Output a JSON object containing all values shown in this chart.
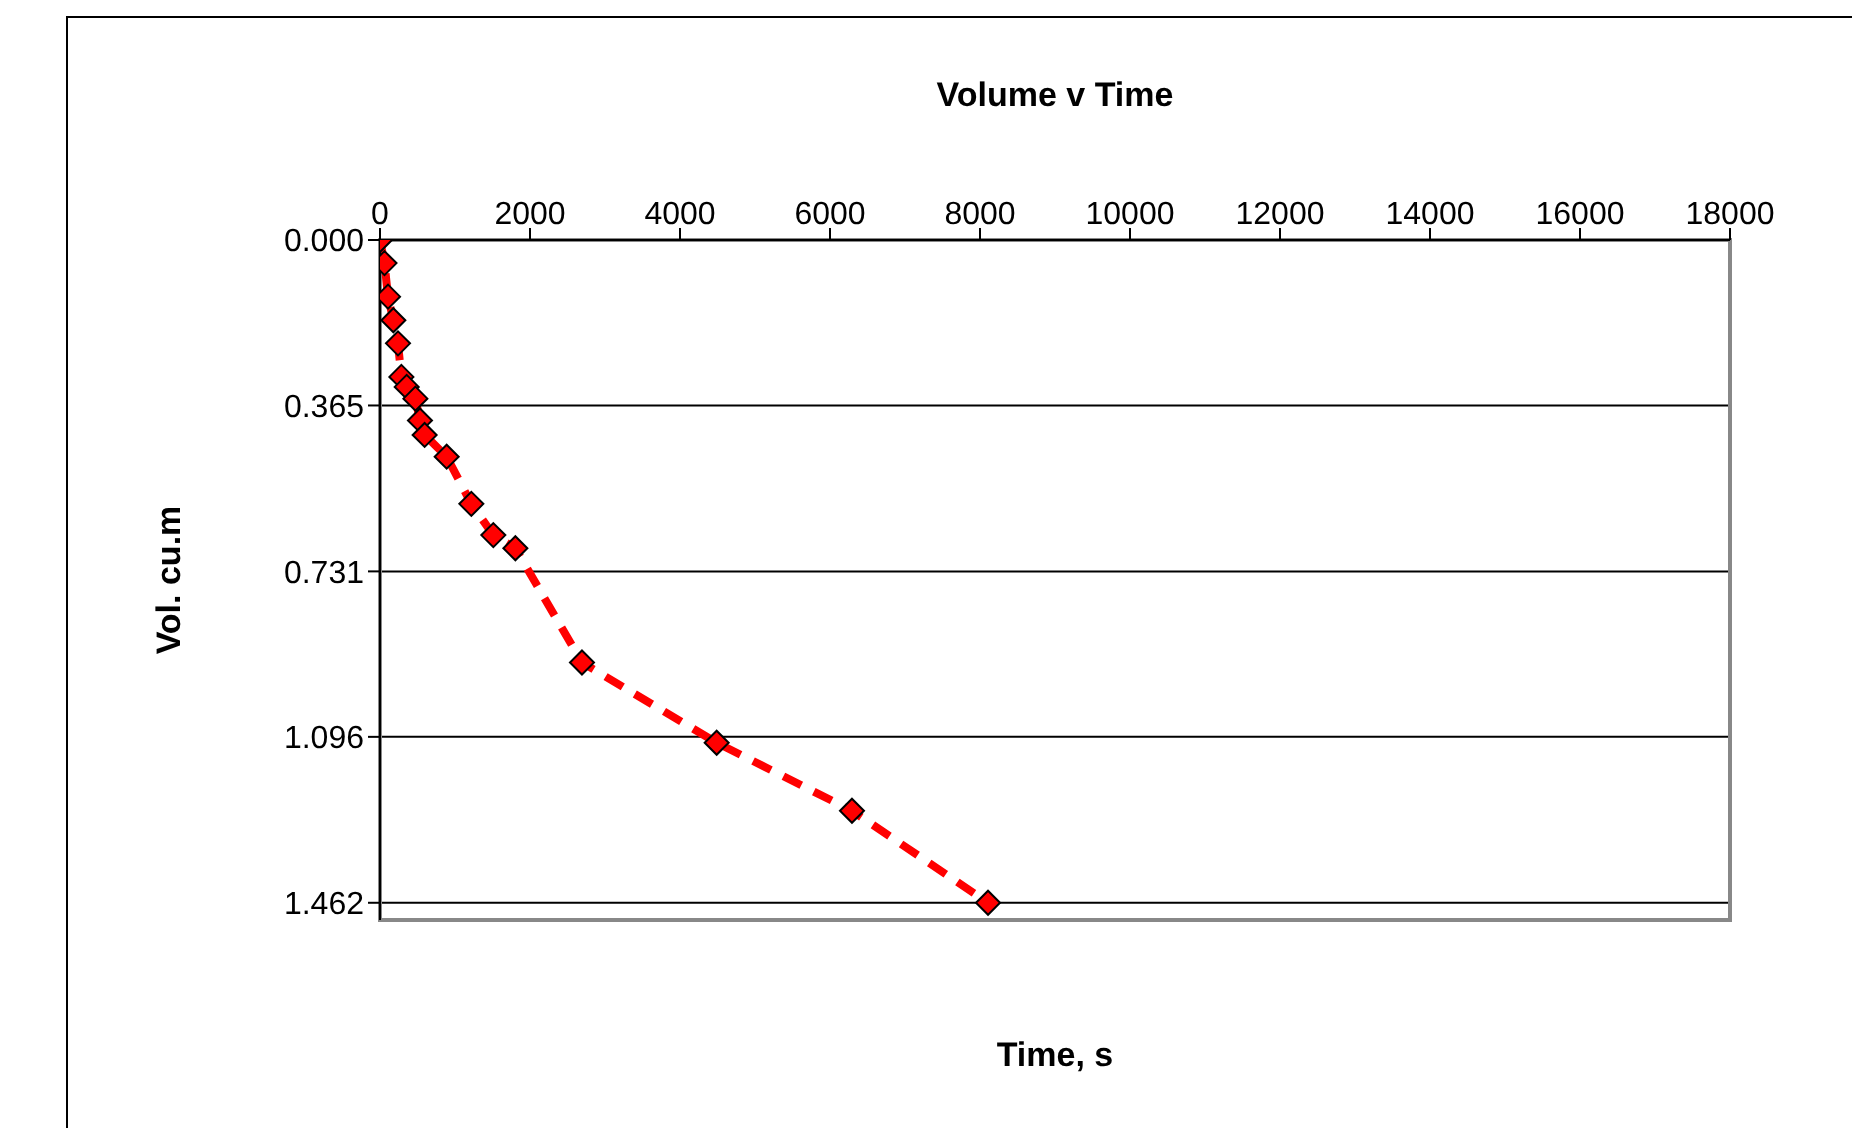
{
  "chart_data": {
    "type": "line",
    "title": "Volume v Time",
    "xlabel": "Time, s",
    "ylabel": "Vol. cu.m",
    "x": [
      0,
      60,
      107,
      178,
      240,
      285,
      356,
      472,
      533,
      595,
      889,
      1218,
      1511,
      1805,
      2693,
      4489,
      6293,
      8107
    ],
    "series": [
      {
        "color": "#ff0000",
        "values": [
          0,
          0.051,
          0.125,
          0.177,
          0.228,
          0.302,
          0.324,
          0.35,
          0.398,
          0.43,
          0.478,
          0.582,
          0.651,
          0.68,
          0.932,
          1.109,
          1.259,
          1.462
        ]
      }
    ],
    "xlim": [
      0,
      18000
    ],
    "xticks": [
      0,
      2000,
      4000,
      6000,
      8000,
      10000,
      12000,
      14000,
      16000,
      18000
    ],
    "ylim": [
      1.5,
      0
    ],
    "yticks": [
      {
        "value": 0,
        "label": "0.000"
      },
      {
        "value": 0.365,
        "label": "0.365"
      },
      {
        "value": 0.731,
        "label": "0.731"
      },
      {
        "value": 1.096,
        "label": "1.096"
      },
      {
        "value": 1.462,
        "label": "1.462"
      }
    ],
    "grid": "y",
    "marker": "diamond",
    "line_style": "dashed",
    "legend": false
  }
}
